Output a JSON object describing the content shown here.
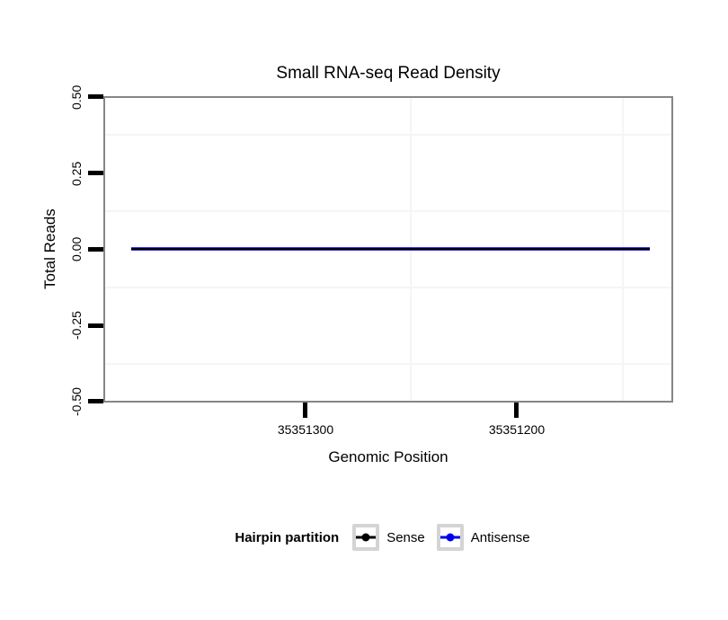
{
  "chart_data": {
    "type": "line",
    "title": "Small RNA-seq Read Density",
    "xlabel": "Genomic Position",
    "ylabel": "Total Reads",
    "x_tick_labels": [
      "35351300",
      "35351200"
    ],
    "x_ticks": [
      35351300,
      35351200
    ],
    "x_axis_reversed": true,
    "y_tick_labels": [
      "0.50",
      "0.25",
      "0.00",
      "-0.25",
      "-0.50"
    ],
    "y_ticks": [
      0.5,
      0.25,
      0.0,
      -0.25,
      -0.5
    ],
    "ylim": [
      -0.5,
      0.5
    ],
    "grid": "minor gridlines only (midway between ticks), very light gray; no major gridlines visible",
    "legend_position": "bottom",
    "legend_title": "Hairpin partition",
    "series": [
      {
        "name": "Sense",
        "color": "#000000",
        "y_value": 0,
        "x_span_approx": [
          35351382,
          35351142
        ],
        "description": "flat line at 0 reads across the whole plotted region"
      },
      {
        "name": "Antisense",
        "color": "#0000ee",
        "y_value": 0,
        "x_span_approx": [
          35351382,
          35351142
        ],
        "description": "flat line at 0 reads, overlapped by the Sense line"
      }
    ],
    "colors": {
      "panel_border": "#868686",
      "axis_tick": "#000000",
      "minor_grid": "#f5f5f5",
      "legend_key_frame": "#d4d4d4",
      "background": "#ffffff"
    }
  }
}
